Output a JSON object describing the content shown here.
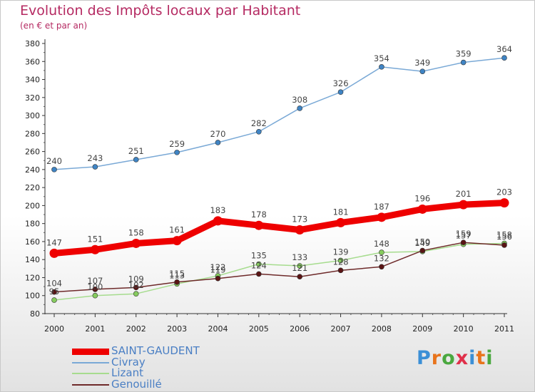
{
  "header": {
    "title": "Evolution des Impôts locaux par Habitant",
    "subtitle": "(en € et par an)"
  },
  "brand": {
    "logo_text": "Proxiti",
    "letter_colors": [
      "#3b8fd6",
      "#e8741c",
      "#4aa83f",
      "#e0304a",
      "#3b8fd6",
      "#e8741c",
      "#4aa83f"
    ]
  },
  "chart_data": {
    "type": "line",
    "title": "Evolution des Impôts locaux par Habitant",
    "subtitle": "(en € et par an)",
    "x": [
      2000,
      2001,
      2002,
      2003,
      2004,
      2005,
      2006,
      2007,
      2008,
      2009,
      2010,
      2011
    ],
    "ylim": [
      80,
      380
    ],
    "y_ticks": [
      80,
      100,
      120,
      140,
      160,
      180,
      200,
      220,
      240,
      260,
      280,
      300,
      320,
      340,
      360,
      380
    ],
    "grid": false,
    "legend_position": "bottom-left",
    "series": [
      {
        "name": "Civray",
        "color": "#7aa9d6",
        "marker": "#3f84c4",
        "line_width": 1.5,
        "values": [
          240,
          243,
          251,
          259,
          270,
          282,
          308,
          326,
          354,
          349,
          359,
          364
        ]
      },
      {
        "name": "Lizant",
        "color": "#a6dc8e",
        "marker": "#86cc5e",
        "line_width": 1.5,
        "values": [
          95,
          100,
          102,
          113,
          122,
          135,
          133,
          139,
          148,
          149,
          157,
          158
        ]
      },
      {
        "name": "Genouillé",
        "color": "#6e2a2a",
        "marker": "#5a1414",
        "line_width": 1.5,
        "values": [
          104,
          107,
          109,
          115,
          119,
          124,
          121,
          128,
          132,
          150,
          159,
          156
        ]
      },
      {
        "name": "SAINT-GAUDENT",
        "color": "#ee0000",
        "marker": "#ee0000",
        "line_width": 9,
        "values": [
          147,
          151,
          158,
          161,
          183,
          178,
          173,
          181,
          187,
          196,
          201,
          203
        ]
      }
    ],
    "legend_order": [
      "SAINT-GAUDENT",
      "Civray",
      "Lizant",
      "Genouillé"
    ]
  }
}
